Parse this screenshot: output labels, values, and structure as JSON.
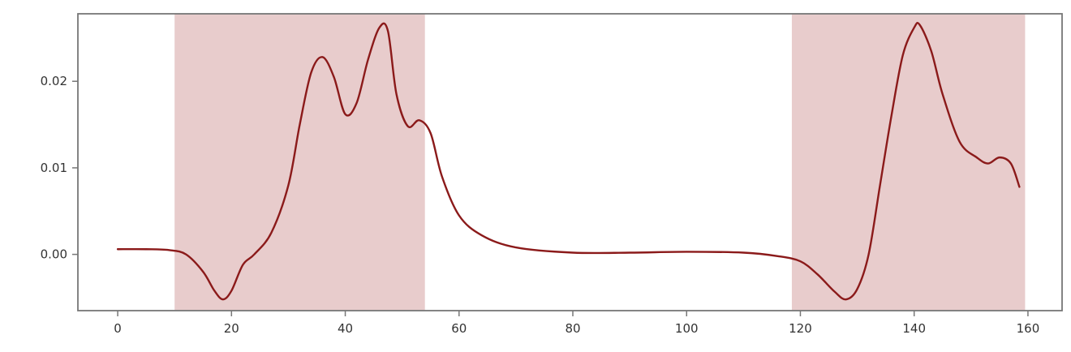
{
  "chart_data": {
    "type": "line",
    "xlim": [
      -7,
      166
    ],
    "ylim": [
      -0.0065,
      0.0278
    ],
    "x_ticks": [
      0,
      20,
      40,
      60,
      80,
      100,
      120,
      140,
      160
    ],
    "x_tick_labels": [
      "0",
      "20",
      "40",
      "60",
      "80",
      "100",
      "120",
      "140",
      "160"
    ],
    "y_ticks": [
      0.0,
      0.01,
      0.02
    ],
    "y_tick_labels": [
      "0.00",
      "0.01",
      "0.02"
    ],
    "grid": false,
    "legend": "none",
    "shaded_regions": [
      {
        "x_start": 10,
        "x_end": 54
      },
      {
        "x_start": 118.5,
        "x_end": 159.5
      }
    ],
    "series": [
      {
        "x": [
          0,
          5,
          9,
          12,
          15,
          17,
          18.5,
          20,
          22,
          24,
          27,
          30,
          32,
          34,
          36,
          38,
          40,
          42,
          44,
          46,
          47.5,
          49,
          51,
          53,
          55,
          57,
          60,
          64,
          70,
          80,
          90,
          100,
          110,
          116,
          120,
          123,
          126,
          128,
          130,
          132,
          134,
          136,
          138,
          140,
          141,
          143,
          145,
          148,
          151,
          153,
          155,
          157,
          158.5
        ],
        "y": [
          0.0006,
          0.0006,
          0.0005,
          0.0,
          -0.002,
          -0.0042,
          -0.0052,
          -0.0042,
          -0.0012,
          0.0,
          0.0025,
          0.008,
          0.015,
          0.021,
          0.0228,
          0.0205,
          0.0162,
          0.0175,
          0.0225,
          0.0262,
          0.0258,
          0.0185,
          0.0148,
          0.0155,
          0.014,
          0.009,
          0.0045,
          0.0022,
          0.0008,
          0.0002,
          0.0002,
          0.0003,
          0.0002,
          -0.0002,
          -0.0008,
          -0.0023,
          -0.0043,
          -0.0052,
          -0.004,
          0.0,
          0.008,
          0.016,
          0.023,
          0.0262,
          0.0265,
          0.0235,
          0.0185,
          0.013,
          0.0112,
          0.0105,
          0.0112,
          0.0105,
          0.0078
        ],
        "color": "#8b1a1a"
      }
    ],
    "shade_color": "#e8cccc",
    "axis_color": "#777777"
  }
}
